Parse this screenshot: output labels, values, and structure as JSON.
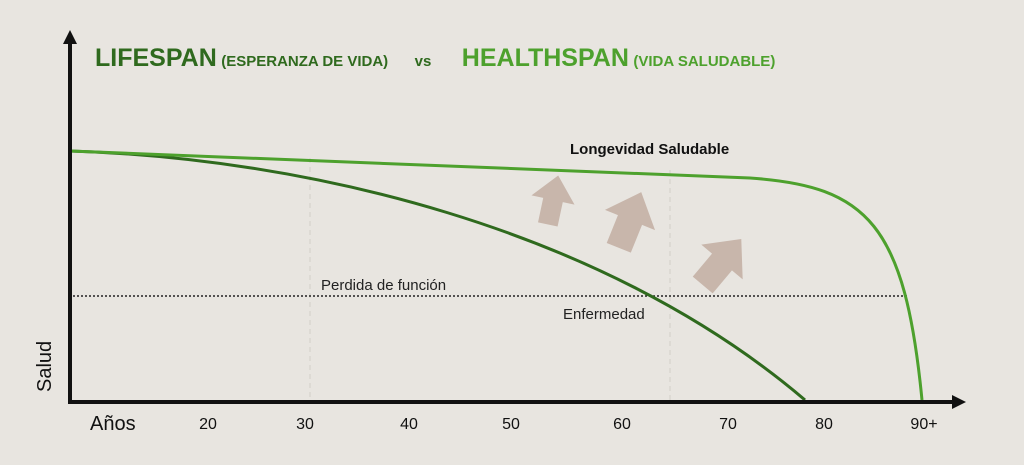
{
  "title": {
    "lifespan": "LIFESPAN",
    "lifespan_sub": "(ESPERANZA DE VIDA)",
    "vs": "vs",
    "healthspan": "HEALTHSPAN",
    "healthspan_sub": "(VIDA SALUDABLE)"
  },
  "axes": {
    "ylabel": "Salud",
    "xlabel": "Años",
    "ticks": [
      "20",
      "30",
      "40",
      "50",
      "60",
      "70",
      "80",
      "90+"
    ]
  },
  "labels": {
    "healthspan_curve": "Longevidad Saludable",
    "threshold": "Perdida de función",
    "lifespan_curve": "Enfermedad"
  },
  "colors": {
    "background": "#e8e5e0",
    "lifespan": "#2f6a1e",
    "healthspan": "#4da12d",
    "arrows": "#c8b6ab"
  }
}
